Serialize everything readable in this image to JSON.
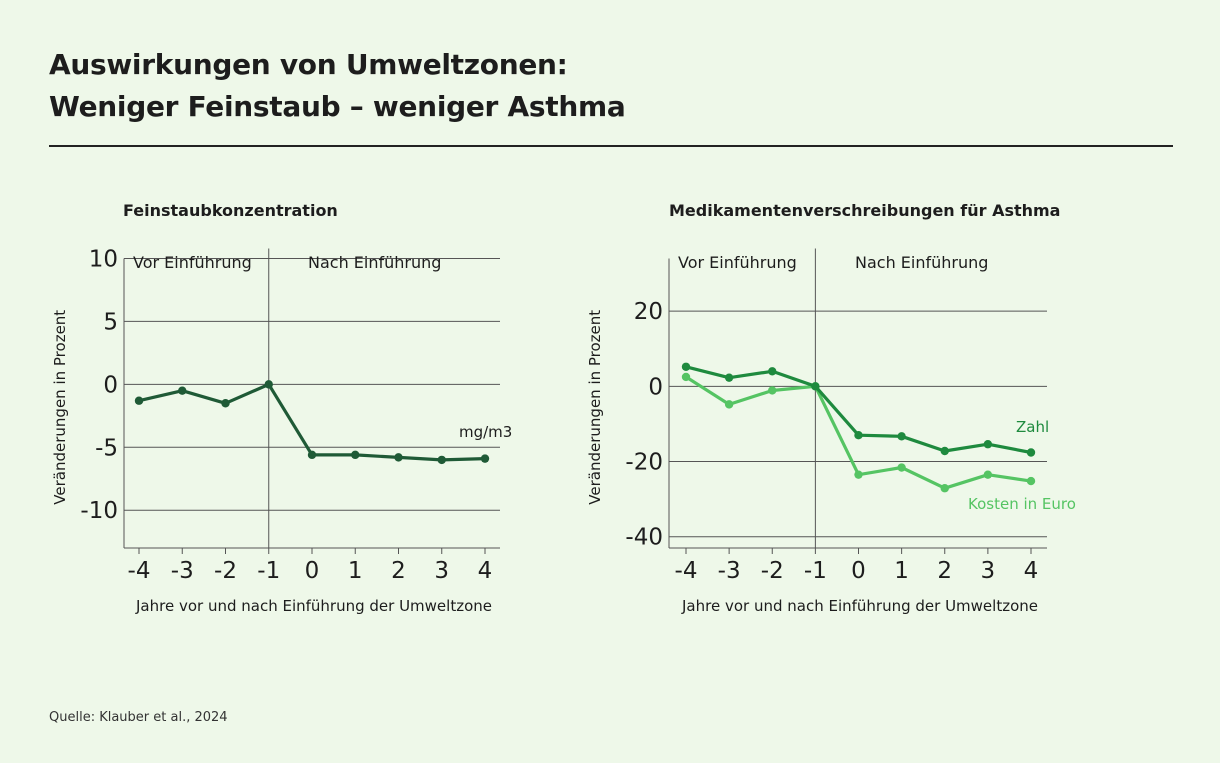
{
  "title": {
    "line1": "Auswirkungen von Umweltzonen:",
    "line2": "Weniger Feinstaub – weniger Asthma"
  },
  "source": "Quelle: Klauber et al., 2024",
  "colors": {
    "background": "#eef8e9",
    "dark_green": "#1f5a36",
    "mid_green": "#1e8a3e",
    "light_green": "#55c463",
    "grid": "#555555"
  },
  "chart_data": [
    {
      "type": "line",
      "title": "Feinstaubkonzentration",
      "xlabel": "Jahre vor und nach Einführung der Umweltzone",
      "ylabel": "Veränderungen in Prozent",
      "x": [
        -4,
        -3,
        -2,
        -1,
        0,
        1,
        2,
        3,
        4
      ],
      "x_tick_labels": [
        "-4",
        "-3",
        "-2",
        "-1",
        "0",
        "1",
        "2",
        "3",
        "4"
      ],
      "yticks": [
        10,
        5,
        0,
        -5,
        -10
      ],
      "y_tick_labels": [
        "10",
        "5",
        "0",
        "-5",
        "-10"
      ],
      "ylim": [
        -13,
        10
      ],
      "split_at": -1,
      "region_labels": {
        "before": "Vor Einführung",
        "after": "Nach Einführung"
      },
      "series": [
        {
          "name": "mg/m3",
          "color": "#1f5a36",
          "values": [
            -1.3,
            -0.5,
            -1.5,
            0,
            -5.6,
            -5.6,
            -5.8,
            -6.0,
            -5.9
          ]
        }
      ]
    },
    {
      "type": "line",
      "title": "Medikamentenverschreibungen für Asthma",
      "xlabel": "Jahre vor und nach Einführung der Umweltzone",
      "ylabel": "Veränderungen in Prozent",
      "x": [
        -4,
        -3,
        -2,
        -1,
        0,
        1,
        2,
        3,
        4
      ],
      "x_tick_labels": [
        "-4",
        "-3",
        "-2",
        "-1",
        "0",
        "1",
        "2",
        "3",
        "4"
      ],
      "yticks": [
        20,
        0,
        -20,
        -40
      ],
      "y_tick_labels": [
        "20",
        "0",
        "-20",
        "-40"
      ],
      "ylim": [
        -43,
        34
      ],
      "split_at": -1,
      "region_labels": {
        "before": "Vor Einführung",
        "after": "Nach Einführung"
      },
      "series": [
        {
          "name": "Zahl",
          "color": "#1e8a3e",
          "values": [
            5.2,
            2.3,
            4.0,
            0,
            -13.0,
            -13.3,
            -17.2,
            -15.4,
            -17.6
          ]
        },
        {
          "name": "Kosten in Euro",
          "color": "#55c463",
          "values": [
            2.5,
            -4.8,
            -1.1,
            0,
            -23.5,
            -21.6,
            -27.1,
            -23.5,
            -25.2
          ]
        }
      ]
    }
  ]
}
